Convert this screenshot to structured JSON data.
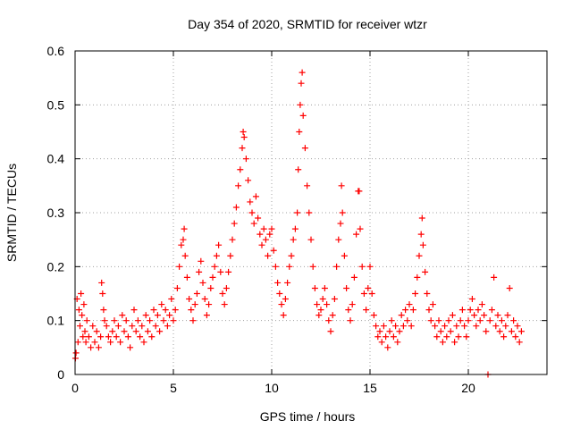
{
  "chart_data": {
    "type": "scatter",
    "title": "Day 354 of 2020, SRMTID for receiver wtzr",
    "xlabel": "GPS time / hours",
    "ylabel": "SRMTID / TECUs",
    "xlim": [
      0,
      24
    ],
    "ylim": [
      0,
      0.6
    ],
    "xticks": [
      "0",
      "5",
      "10",
      "15",
      "20"
    ],
    "yticks": [
      "0",
      "0.1",
      "0.2",
      "0.3",
      "0.4",
      "0.5",
      "0.6"
    ],
    "grid": true,
    "marker": "+",
    "colors": {
      "points": "#ff0000",
      "axes": "#000000",
      "grid": "#a0a0a0"
    },
    "series": [
      {
        "name": "SRMTID",
        "points": [
          [
            0.02,
            0.03
          ],
          [
            0.05,
            0.04
          ],
          [
            0.1,
            0.14
          ],
          [
            0.15,
            0.06
          ],
          [
            0.2,
            0.12
          ],
          [
            0.25,
            0.09
          ],
          [
            0.3,
            0.15
          ],
          [
            0.35,
            0.11
          ],
          [
            0.4,
            0.07
          ],
          [
            0.45,
            0.13
          ],
          [
            0.5,
            0.08
          ],
          [
            0.55,
            0.06
          ],
          [
            0.6,
            0.1
          ],
          [
            0.7,
            0.07
          ],
          [
            0.8,
            0.05
          ],
          [
            0.9,
            0.09
          ],
          [
            1.0,
            0.06
          ],
          [
            1.1,
            0.08
          ],
          [
            1.2,
            0.05
          ],
          [
            1.3,
            0.07
          ],
          [
            1.35,
            0.17
          ],
          [
            1.4,
            0.15
          ],
          [
            1.45,
            0.12
          ],
          [
            1.5,
            0.1
          ],
          [
            1.6,
            0.09
          ],
          [
            1.7,
            0.07
          ],
          [
            1.8,
            0.06
          ],
          [
            1.9,
            0.08
          ],
          [
            2.0,
            0.1
          ],
          [
            2.1,
            0.07
          ],
          [
            2.2,
            0.09
          ],
          [
            2.3,
            0.06
          ],
          [
            2.4,
            0.11
          ],
          [
            2.5,
            0.08
          ],
          [
            2.6,
            0.1
          ],
          [
            2.7,
            0.07
          ],
          [
            2.8,
            0.05
          ],
          [
            2.9,
            0.09
          ],
          [
            3.0,
            0.12
          ],
          [
            3.1,
            0.08
          ],
          [
            3.2,
            0.1
          ],
          [
            3.3,
            0.07
          ],
          [
            3.4,
            0.09
          ],
          [
            3.5,
            0.06
          ],
          [
            3.6,
            0.11
          ],
          [
            3.7,
            0.08
          ],
          [
            3.8,
            0.1
          ],
          [
            3.9,
            0.07
          ],
          [
            4.0,
            0.12
          ],
          [
            4.1,
            0.09
          ],
          [
            4.2,
            0.11
          ],
          [
            4.3,
            0.08
          ],
          [
            4.4,
            0.13
          ],
          [
            4.5,
            0.1
          ],
          [
            4.6,
            0.12
          ],
          [
            4.7,
            0.09
          ],
          [
            4.8,
            0.11
          ],
          [
            4.9,
            0.14
          ],
          [
            5.0,
            0.1
          ],
          [
            5.1,
            0.12
          ],
          [
            5.2,
            0.16
          ],
          [
            5.3,
            0.2
          ],
          [
            5.4,
            0.24
          ],
          [
            5.5,
            0.25
          ],
          [
            5.55,
            0.27
          ],
          [
            5.6,
            0.22
          ],
          [
            5.7,
            0.18
          ],
          [
            5.8,
            0.14
          ],
          [
            5.9,
            0.12
          ],
          [
            6.0,
            0.1
          ],
          [
            6.1,
            0.13
          ],
          [
            6.2,
            0.15
          ],
          [
            6.3,
            0.19
          ],
          [
            6.4,
            0.21
          ],
          [
            6.5,
            0.17
          ],
          [
            6.6,
            0.14
          ],
          [
            6.7,
            0.11
          ],
          [
            6.8,
            0.13
          ],
          [
            6.9,
            0.16
          ],
          [
            7.0,
            0.18
          ],
          [
            7.1,
            0.2
          ],
          [
            7.2,
            0.22
          ],
          [
            7.3,
            0.24
          ],
          [
            7.4,
            0.19
          ],
          [
            7.5,
            0.15
          ],
          [
            7.6,
            0.13
          ],
          [
            7.7,
            0.16
          ],
          [
            7.8,
            0.19
          ],
          [
            7.9,
            0.22
          ],
          [
            8.0,
            0.25
          ],
          [
            8.1,
            0.28
          ],
          [
            8.2,
            0.31
          ],
          [
            8.3,
            0.35
          ],
          [
            8.4,
            0.38
          ],
          [
            8.5,
            0.42
          ],
          [
            8.55,
            0.45
          ],
          [
            8.6,
            0.44
          ],
          [
            8.7,
            0.4
          ],
          [
            8.8,
            0.36
          ],
          [
            8.9,
            0.32
          ],
          [
            9.0,
            0.3
          ],
          [
            9.1,
            0.28
          ],
          [
            9.2,
            0.33
          ],
          [
            9.3,
            0.29
          ],
          [
            9.4,
            0.26
          ],
          [
            9.5,
            0.24
          ],
          [
            9.6,
            0.27
          ],
          [
            9.7,
            0.25
          ],
          [
            9.8,
            0.22
          ],
          [
            9.9,
            0.26
          ],
          [
            10.0,
            0.27
          ],
          [
            10.1,
            0.23
          ],
          [
            10.2,
            0.2
          ],
          [
            10.3,
            0.17
          ],
          [
            10.4,
            0.15
          ],
          [
            10.5,
            0.13
          ],
          [
            10.6,
            0.11
          ],
          [
            10.7,
            0.14
          ],
          [
            10.8,
            0.17
          ],
          [
            10.9,
            0.2
          ],
          [
            11.0,
            0.22
          ],
          [
            11.1,
            0.25
          ],
          [
            11.2,
            0.27
          ],
          [
            11.3,
            0.3
          ],
          [
            11.35,
            0.38
          ],
          [
            11.4,
            0.45
          ],
          [
            11.45,
            0.5
          ],
          [
            11.5,
            0.54
          ],
          [
            11.55,
            0.56
          ],
          [
            11.6,
            0.48
          ],
          [
            11.7,
            0.42
          ],
          [
            11.8,
            0.35
          ],
          [
            11.9,
            0.3
          ],
          [
            12.0,
            0.25
          ],
          [
            12.1,
            0.2
          ],
          [
            12.2,
            0.16
          ],
          [
            12.3,
            0.13
          ],
          [
            12.4,
            0.11
          ],
          [
            12.5,
            0.12
          ],
          [
            12.6,
            0.14
          ],
          [
            12.7,
            0.16
          ],
          [
            12.8,
            0.13
          ],
          [
            12.9,
            0.1
          ],
          [
            13.0,
            0.08
          ],
          [
            13.1,
            0.11
          ],
          [
            13.2,
            0.14
          ],
          [
            13.3,
            0.2
          ],
          [
            13.4,
            0.25
          ],
          [
            13.5,
            0.28
          ],
          [
            13.55,
            0.35
          ],
          [
            13.6,
            0.3
          ],
          [
            13.7,
            0.22
          ],
          [
            13.8,
            0.16
          ],
          [
            13.9,
            0.12
          ],
          [
            14.0,
            0.1
          ],
          [
            14.1,
            0.13
          ],
          [
            14.2,
            0.18
          ],
          [
            14.3,
            0.26
          ],
          [
            14.4,
            0.34
          ],
          [
            14.45,
            0.34
          ],
          [
            14.5,
            0.27
          ],
          [
            14.6,
            0.2
          ],
          [
            14.7,
            0.15
          ],
          [
            14.8,
            0.12
          ],
          [
            14.9,
            0.16
          ],
          [
            15.0,
            0.2
          ],
          [
            15.1,
            0.15
          ],
          [
            15.2,
            0.11
          ],
          [
            15.3,
            0.09
          ],
          [
            15.4,
            0.07
          ],
          [
            15.5,
            0.08
          ],
          [
            15.6,
            0.06
          ],
          [
            15.7,
            0.09
          ],
          [
            15.8,
            0.07
          ],
          [
            15.9,
            0.05
          ],
          [
            16.0,
            0.08
          ],
          [
            16.1,
            0.1
          ],
          [
            16.2,
            0.07
          ],
          [
            16.3,
            0.09
          ],
          [
            16.4,
            0.06
          ],
          [
            16.5,
            0.08
          ],
          [
            16.6,
            0.11
          ],
          [
            16.7,
            0.09
          ],
          [
            16.8,
            0.12
          ],
          [
            16.9,
            0.1
          ],
          [
            17.0,
            0.13
          ],
          [
            17.1,
            0.09
          ],
          [
            17.2,
            0.12
          ],
          [
            17.3,
            0.15
          ],
          [
            17.4,
            0.18
          ],
          [
            17.5,
            0.22
          ],
          [
            17.6,
            0.26
          ],
          [
            17.65,
            0.29
          ],
          [
            17.7,
            0.24
          ],
          [
            17.8,
            0.19
          ],
          [
            17.9,
            0.15
          ],
          [
            18.0,
            0.12
          ],
          [
            18.1,
            0.1
          ],
          [
            18.2,
            0.13
          ],
          [
            18.3,
            0.09
          ],
          [
            18.4,
            0.07
          ],
          [
            18.5,
            0.1
          ],
          [
            18.6,
            0.08
          ],
          [
            18.7,
            0.06
          ],
          [
            18.8,
            0.09
          ],
          [
            18.9,
            0.07
          ],
          [
            19.0,
            0.1
          ],
          [
            19.1,
            0.08
          ],
          [
            19.2,
            0.11
          ],
          [
            19.3,
            0.06
          ],
          [
            19.4,
            0.09
          ],
          [
            19.5,
            0.07
          ],
          [
            19.6,
            0.1
          ],
          [
            19.7,
            0.12
          ],
          [
            19.8,
            0.09
          ],
          [
            19.9,
            0.07
          ],
          [
            20.0,
            0.1
          ],
          [
            20.1,
            0.12
          ],
          [
            20.2,
            0.14
          ],
          [
            20.3,
            0.11
          ],
          [
            20.4,
            0.09
          ],
          [
            20.5,
            0.12
          ],
          [
            20.6,
            0.1
          ],
          [
            20.7,
            0.13
          ],
          [
            20.8,
            0.11
          ],
          [
            20.9,
            0.08
          ],
          [
            21.0,
            0.0
          ],
          [
            21.1,
            0.1
          ],
          [
            21.2,
            0.12
          ],
          [
            21.3,
            0.18
          ],
          [
            21.4,
            0.09
          ],
          [
            21.5,
            0.11
          ],
          [
            21.6,
            0.08
          ],
          [
            21.7,
            0.1
          ],
          [
            21.8,
            0.07
          ],
          [
            21.9,
            0.09
          ],
          [
            22.0,
            0.11
          ],
          [
            22.1,
            0.16
          ],
          [
            22.2,
            0.08
          ],
          [
            22.3,
            0.1
          ],
          [
            22.4,
            0.07
          ],
          [
            22.5,
            0.09
          ],
          [
            22.6,
            0.06
          ],
          [
            22.7,
            0.08
          ]
        ]
      }
    ]
  }
}
